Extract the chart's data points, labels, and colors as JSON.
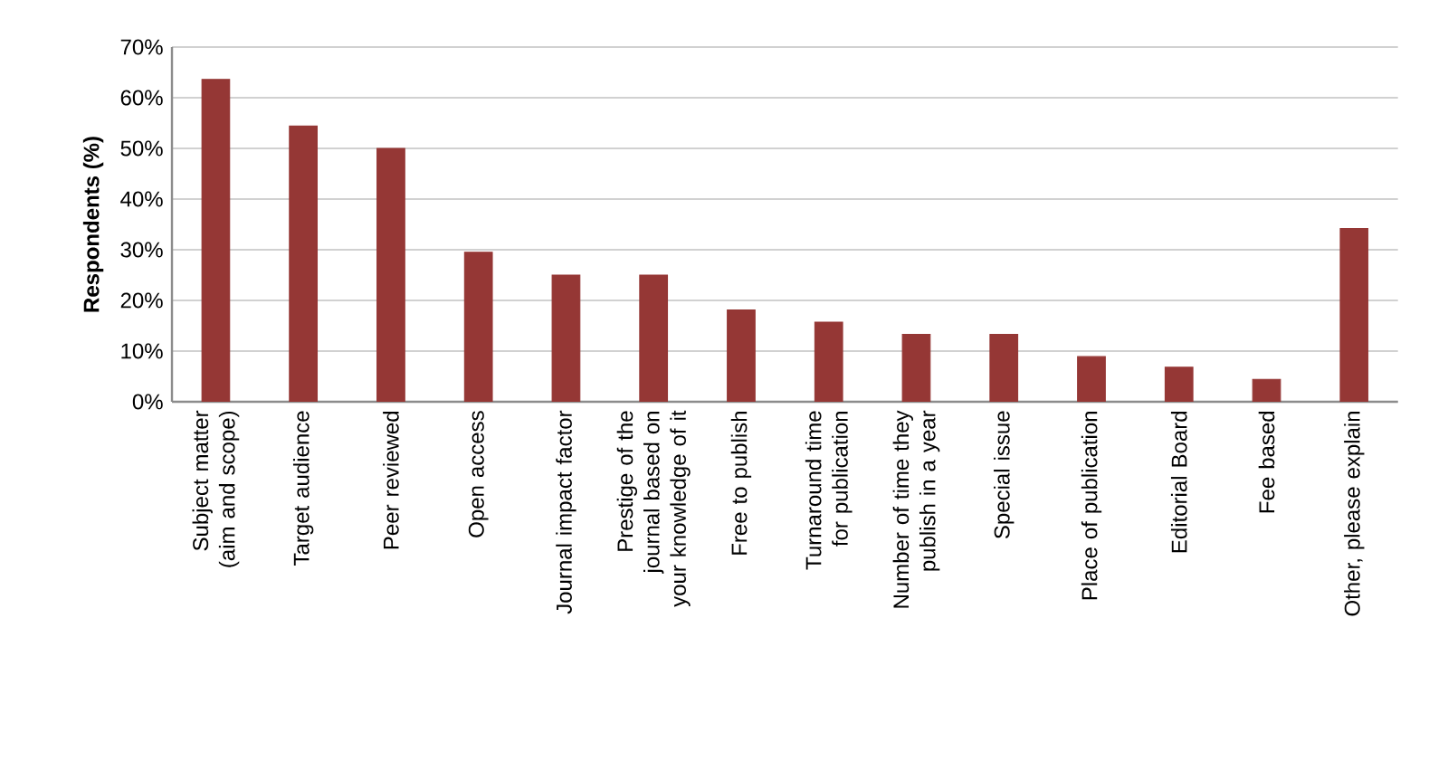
{
  "chart_data": {
    "type": "bar",
    "ylabel": "Respondents (%)",
    "categories": [
      "Subject matter (aim and scope)",
      "Target audience",
      "Peer reviewed",
      "Open access",
      "Journal impact factor",
      "Prestige of the journal based on your knowledge of it",
      "Free to publish",
      "Turnaround time for publication",
      "Number of time they publish in a year",
      "Special issue",
      "Place of publication",
      "Editorial Board",
      "Fee based",
      "Other, please explain"
    ],
    "values": [
      63.6,
      54.4,
      50.0,
      29.5,
      25.0,
      25.0,
      18.1,
      15.7,
      13.3,
      13.3,
      8.9,
      6.8,
      4.4,
      34.2
    ],
    "color": "#953735",
    "ylim": [
      0,
      70
    ],
    "yticks": [
      {
        "value": 0,
        "label": "0%"
      },
      {
        "value": 10,
        "label": "10%"
      },
      {
        "value": 20,
        "label": "20%"
      },
      {
        "value": 30,
        "label": "30%"
      },
      {
        "value": 40,
        "label": "40%"
      },
      {
        "value": 50,
        "label": "50%"
      },
      {
        "value": 60,
        "label": "60%"
      },
      {
        "value": 70,
        "label": "70%"
      }
    ],
    "grid": "y"
  }
}
